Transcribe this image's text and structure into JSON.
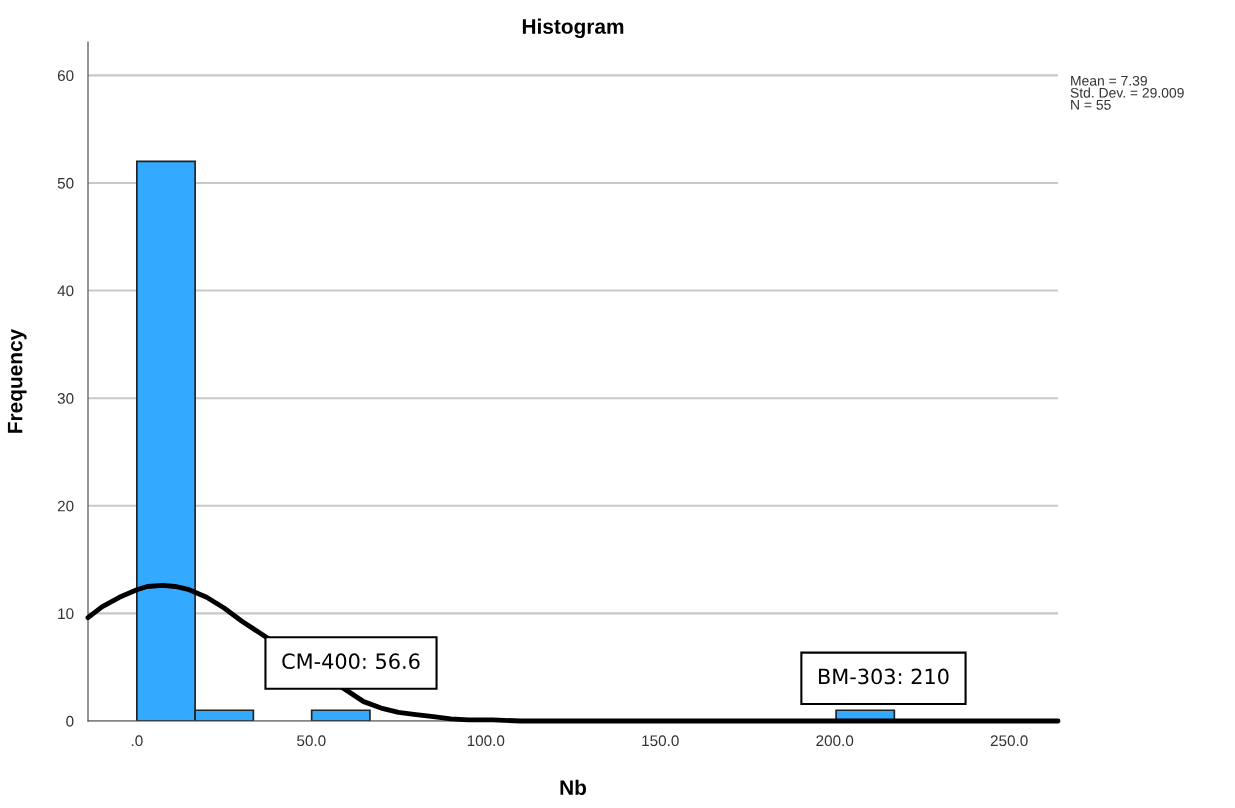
{
  "chart_data": {
    "type": "histogram",
    "title": "Histogram",
    "xlabel": "Nb",
    "ylabel": "Frequency",
    "series": [
      {
        "color": "#33aaff",
        "bins": [
          0,
          16.7,
          33.4,
          50.1,
          66.8,
          83.5,
          100.2,
          116.9,
          133.6,
          150.3,
          167,
          183.7,
          200.4,
          217.1
        ],
        "values": [
          52,
          1,
          0,
          1,
          0,
          0,
          0,
          0,
          0,
          0,
          0,
          0,
          1
        ]
      },
      {
        "type": "line",
        "color": "#000000",
        "x": [
          -14,
          -10,
          -5,
          0,
          3,
          7.39,
          11,
          15,
          20,
          25,
          30,
          65,
          70,
          75,
          80,
          85,
          90,
          95,
          102,
          110,
          130,
          160,
          200,
          264
        ],
        "values": [
          9.6,
          10.6,
          11.5,
          12.2,
          12.5,
          12.6,
          12.5,
          12.2,
          11.5,
          10.5,
          9.3,
          1.8,
          1.2,
          0.8,
          0.6,
          0.4,
          0.2,
          0.1,
          0.1,
          0,
          0,
          0,
          0,
          0
        ]
      }
    ],
    "xlim": [
      -14,
      264
    ],
    "xticks": [
      {
        "value": 0,
        "label": ".0"
      },
      {
        "value": 50,
        "label": "50.0"
      },
      {
        "value": 100,
        "label": "100.0"
      },
      {
        "value": 150,
        "label": "150.0"
      },
      {
        "value": 200,
        "label": "200.0"
      },
      {
        "value": 250,
        "label": "250.0"
      }
    ],
    "ylim": [
      0,
      63.1
    ],
    "yticks": [
      0,
      10,
      20,
      30,
      40,
      50,
      60
    ],
    "grid": "y",
    "legend": false,
    "annotations": [
      "Mean = 7.39",
      "Std. Dev. = 29.009",
      "N = 55",
      {
        "text": "CM-400: 56.6",
        "x": 56.6,
        "y": 1
      },
      {
        "text": "BM-303: 210",
        "x": 210,
        "y": 1
      }
    ]
  }
}
